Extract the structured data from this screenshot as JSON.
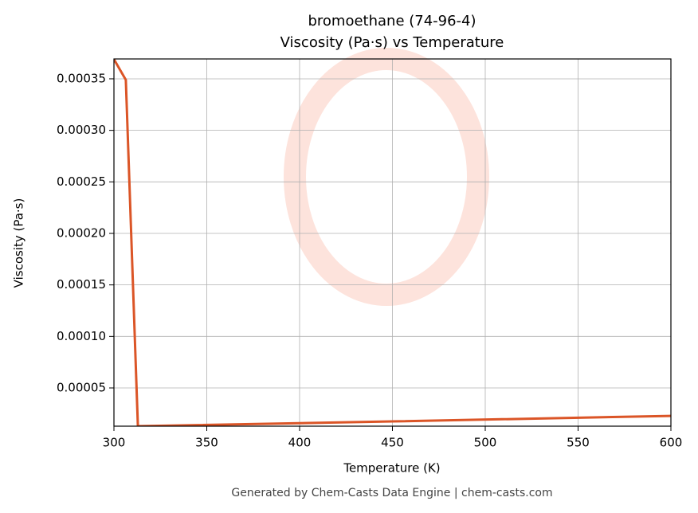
{
  "chart_data": {
    "type": "line",
    "title": [
      "bromoethane (74-96-4)",
      "Viscosity (Pa·s) vs Temperature"
    ],
    "x_label": "Temperature (K)",
    "y_label": "Viscosity (Pa·s)",
    "footer": "Generated by Chem-Casts Data Engine | chem-casts.com",
    "x": [
      300,
      306.4,
      312.9,
      450,
      600
    ],
    "series": [
      {
        "name": "Viscosity",
        "color": "#db5527",
        "values": [
          0.000369,
          0.000349,
          1.29e-05,
          1.75e-05,
          2.29e-05
        ]
      }
    ],
    "xlim": [
      300,
      600
    ],
    "xticks": [
      300,
      350,
      400,
      450,
      500,
      550,
      600
    ],
    "ylim": [
      1.29e-05,
      0.0003693
    ],
    "yticks": [
      {
        "value": 5e-05,
        "label": "0.00005"
      },
      {
        "value": 0.0001,
        "label": "0.00010"
      },
      {
        "value": 0.00015,
        "label": "0.00015"
      },
      {
        "value": 0.0002,
        "label": "0.00020"
      },
      {
        "value": 0.00025,
        "label": "0.00025"
      },
      {
        "value": 0.0003,
        "label": "0.00030"
      },
      {
        "value": 0.00035,
        "label": "0.00035"
      }
    ],
    "grid": true
  }
}
